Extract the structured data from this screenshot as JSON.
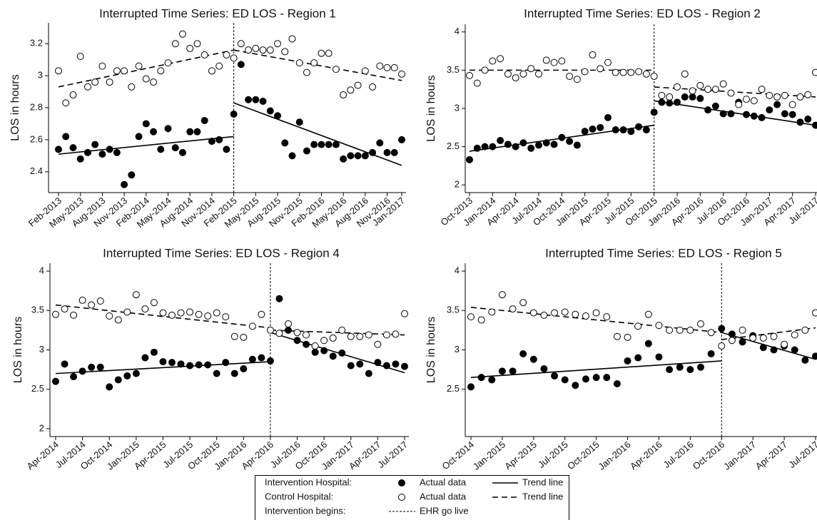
{
  "chart_data": [
    {
      "type": "scatter",
      "title": "Interrupted Time Series: ED LOS - Region 1",
      "y_label": "LOS in hours",
      "categories": [
        "Feb-2013",
        null,
        null,
        "May-2013",
        null,
        null,
        "Aug-2013",
        null,
        null,
        "Nov-2013",
        null,
        null,
        "Feb-2014",
        null,
        null,
        "May-2014",
        null,
        null,
        "Aug-2014",
        null,
        null,
        "Nov-2014",
        null,
        null,
        "Feb-2015",
        null,
        null,
        "May-2015",
        null,
        null,
        "Aug-2015",
        null,
        null,
        "Nov-2015",
        null,
        null,
        "Feb-2016",
        null,
        null,
        "May-2016",
        null,
        null,
        "Aug-2016",
        null,
        null,
        "Nov-2016",
        null,
        "Jan-2017"
      ],
      "intervention": "Feb-2015",
      "ylim": [
        2.27,
        3.33
      ],
      "yticks": [
        2.4,
        2.6,
        2.8,
        3,
        3.2
      ],
      "series": [
        {
          "marker": "filled",
          "color": "#000000",
          "values": [
            2.54,
            2.62,
            2.55,
            2.48,
            2.52,
            2.57,
            2.51,
            2.54,
            2.52,
            2.32,
            2.38,
            2.62,
            2.7,
            2.65,
            2.54,
            2.67,
            2.55,
            2.52,
            2.65,
            2.65,
            2.72,
            2.59,
            2.6,
            2.54,
            2.76,
            3.07,
            2.85,
            2.85,
            2.84,
            2.78,
            2.75,
            2.58,
            2.5,
            2.71,
            2.53,
            2.57,
            2.57,
            2.57,
            2.57,
            2.48,
            2.5,
            2.5,
            2.5,
            2.52,
            2.58,
            2.52,
            2.52,
            2.6
          ]
        },
        {
          "marker": "open",
          "color": "#000000",
          "values": [
            3.03,
            2.83,
            2.88,
            3.12,
            2.93,
            2.96,
            3.06,
            2.96,
            3.03,
            3.03,
            2.93,
            3.06,
            2.98,
            2.96,
            3.03,
            3.08,
            3.2,
            3.26,
            3.17,
            3.2,
            3.13,
            3.03,
            3.06,
            3.13,
            3.11,
            3.2,
            3.16,
            3.17,
            3.16,
            3.16,
            3.2,
            3.15,
            3.23,
            3.08,
            3.02,
            3.08,
            3.14,
            3.14,
            3.04,
            2.88,
            2.91,
            2.94,
            3.03,
            2.93,
            3.06,
            3.05,
            3.05,
            3.01
          ]
        }
      ],
      "trends": [
        {
          "dashed": false,
          "segments": [
            {
              "x": [
                "Feb-2013",
                "Feb-2015"
              ],
              "values": [
                2.51,
                2.62
              ]
            },
            {
              "x": [
                "Feb-2015",
                "Jan-2017"
              ],
              "values": [
                2.83,
                2.44
              ]
            }
          ]
        },
        {
          "dashed": true,
          "segments": [
            {
              "x": [
                "Feb-2013",
                "Feb-2015"
              ],
              "values": [
                2.93,
                3.16
              ]
            },
            {
              "x": [
                "Feb-2015",
                "Jan-2017"
              ],
              "values": [
                3.16,
                2.97
              ]
            }
          ]
        }
      ]
    },
    {
      "type": "scatter",
      "title": "Interrupted Time Series: ED LOS - Region 2",
      "y_label": "LOS in hours",
      "categories": [
        "Oct-2013",
        null,
        null,
        "Jan-2014",
        null,
        null,
        "Apr-2014",
        null,
        null,
        "Jul-2014",
        null,
        null,
        "Oct-2014",
        null,
        null,
        "Jan-2015",
        null,
        null,
        "Apr-2015",
        null,
        null,
        "Jul-2015",
        null,
        null,
        "Oct-2015",
        null,
        null,
        "Jan-2016",
        null,
        null,
        "Apr-2016",
        null,
        null,
        "Jul-2016",
        null,
        null,
        "Oct-2016",
        null,
        null,
        "Jan-2017",
        null,
        null,
        "Apr-2017",
        null,
        null,
        "Jul-2017"
      ],
      "intervention": "Oct-2015",
      "ylim": [
        1.9,
        4.1
      ],
      "yticks": [
        2,
        2.5,
        3,
        3.5,
        4
      ],
      "series": [
        {
          "marker": "filled",
          "color": "#000000",
          "values": [
            2.33,
            2.48,
            2.5,
            2.5,
            2.58,
            2.53,
            2.5,
            2.55,
            2.48,
            2.52,
            2.55,
            2.53,
            2.62,
            2.57,
            2.52,
            2.7,
            2.73,
            2.75,
            2.88,
            2.72,
            2.72,
            2.7,
            2.76,
            2.72,
            2.95,
            3.08,
            3.07,
            3.08,
            3.15,
            3.15,
            3.13,
            2.98,
            3.03,
            2.93,
            2.93,
            3.08,
            2.92,
            2.9,
            2.88,
            2.98,
            3.05,
            2.93,
            2.92,
            2.82,
            2.86,
            2.78
          ]
        },
        {
          "marker": "open",
          "color": "#000000",
          "values": [
            3.43,
            3.33,
            3.5,
            3.62,
            3.65,
            3.45,
            3.4,
            3.45,
            3.52,
            3.45,
            3.63,
            3.6,
            3.62,
            3.42,
            3.38,
            3.48,
            3.7,
            3.52,
            3.6,
            3.47,
            3.47,
            3.47,
            3.48,
            3.45,
            3.42,
            3.17,
            3.15,
            3.28,
            3.45,
            3.23,
            3.3,
            3.25,
            3.25,
            3.32,
            3.2,
            3.05,
            3.12,
            3.1,
            3.25,
            3.17,
            3.15,
            3.17,
            3.05,
            3.15,
            3.18,
            3.47
          ]
        }
      ],
      "trends": [
        {
          "dashed": false,
          "segments": [
            {
              "x": [
                "Oct-2013",
                "Oct-2015"
              ],
              "values": [
                2.44,
                2.78
              ]
            },
            {
              "x": [
                "Oct-2015",
                "Jul-2017"
              ],
              "values": [
                3.1,
                2.78
              ]
            }
          ]
        },
        {
          "dashed": true,
          "segments": [
            {
              "x": [
                "Oct-2013",
                "Oct-2015"
              ],
              "values": [
                3.5,
                3.5
              ]
            },
            {
              "x": [
                "Oct-2015",
                "Jul-2017"
              ],
              "values": [
                3.28,
                3.15
              ]
            }
          ]
        }
      ]
    },
    {
      "type": "scatter",
      "title": "Interrupted Time Series: ED LOS - Region 4",
      "y_label": "LOS in hours",
      "categories": [
        "Apr-2014",
        null,
        null,
        "Jul-2014",
        null,
        null,
        "Oct-2014",
        null,
        null,
        "Jan-2015",
        null,
        null,
        "Apr-2015",
        null,
        null,
        "Jul-2015",
        null,
        null,
        "Oct-2015",
        null,
        null,
        "Jan-2016",
        null,
        null,
        "Apr-2016",
        null,
        null,
        "Jul-2016",
        null,
        null,
        "Oct-2016",
        null,
        null,
        "Jan-2017",
        null,
        null,
        "Apr-2017",
        null,
        null,
        "Jul-2017"
      ],
      "intervention": "Apr-2016",
      "ylim": [
        1.9,
        4.1
      ],
      "yticks": [
        2,
        2.5,
        3,
        3.5,
        4
      ],
      "series": [
        {
          "marker": "filled",
          "color": "#000000",
          "values": [
            2.6,
            2.82,
            2.66,
            2.73,
            2.78,
            2.78,
            2.53,
            2.62,
            2.67,
            2.7,
            2.9,
            2.97,
            2.85,
            2.84,
            2.82,
            2.8,
            2.81,
            2.81,
            2.7,
            2.84,
            2.7,
            2.76,
            2.88,
            2.9,
            2.86,
            3.65,
            3.25,
            3.12,
            3.07,
            2.97,
            2.99,
            2.92,
            2.96,
            2.8,
            2.82,
            2.7,
            2.84,
            2.8,
            2.82,
            2.79
          ]
        },
        {
          "marker": "open",
          "color": "#000000",
          "values": [
            3.45,
            3.52,
            3.44,
            3.63,
            3.57,
            3.62,
            3.43,
            3.38,
            3.48,
            3.7,
            3.52,
            3.6,
            3.47,
            3.44,
            3.47,
            3.48,
            3.45,
            3.43,
            3.47,
            3.42,
            3.17,
            3.16,
            3.3,
            3.45,
            3.25,
            3.21,
            3.33,
            3.22,
            3.19,
            3.05,
            3.12,
            3.15,
            3.25,
            3.17,
            3.17,
            3.19,
            3.07,
            3.19,
            3.2,
            3.46
          ]
        }
      ],
      "trends": [
        {
          "dashed": false,
          "segments": [
            {
              "x": [
                "Apr-2014",
                "Apr-2016"
              ],
              "values": [
                2.7,
                2.85
              ]
            },
            {
              "x": [
                "Apr-2016",
                "Jul-2017"
              ],
              "values": [
                3.22,
                2.71
              ]
            }
          ]
        },
        {
          "dashed": true,
          "segments": [
            {
              "x": [
                "Apr-2014",
                "Apr-2016"
              ],
              "values": [
                3.57,
                3.28
              ]
            },
            {
              "x": [
                "Apr-2016",
                "Jul-2017"
              ],
              "values": [
                3.25,
                3.19
              ]
            }
          ]
        }
      ]
    },
    {
      "type": "scatter",
      "title": "Interrupted Time Series: ED LOS - Region 5",
      "y_label": "LOS in hours",
      "categories": [
        "Oct-2014",
        null,
        null,
        "Jan-2015",
        null,
        null,
        "Apr-2015",
        null,
        null,
        "Jul-2015",
        null,
        null,
        "Oct-2015",
        null,
        null,
        "Jan-2016",
        null,
        null,
        "Apr-2016",
        null,
        null,
        "Jul-2016",
        null,
        null,
        "Oct-2016",
        null,
        null,
        "Jan-2017",
        null,
        null,
        "Apr-2017",
        null,
        null,
        "Jul-2017"
      ],
      "intervention": "Oct-2016",
      "ylim": [
        1.9,
        4.1
      ],
      "yticks": [
        2.5,
        3,
        3.5,
        4
      ],
      "series": [
        {
          "marker": "filled",
          "color": "#000000",
          "values": [
            2.53,
            2.65,
            2.62,
            2.73,
            2.73,
            2.95,
            2.88,
            2.76,
            2.67,
            2.62,
            2.55,
            2.63,
            2.65,
            2.65,
            2.57,
            2.86,
            2.9,
            3.08,
            2.91,
            2.75,
            2.78,
            2.75,
            2.78,
            2.95,
            3.27,
            3.2,
            3.1,
            3.18,
            3.03,
            3.0,
            3.05,
            3.0,
            2.87,
            2.92
          ]
        },
        {
          "marker": "open",
          "color": "#000000",
          "values": [
            3.42,
            3.38,
            3.48,
            3.7,
            3.52,
            3.6,
            3.47,
            3.44,
            3.47,
            3.48,
            3.45,
            3.43,
            3.47,
            3.42,
            3.17,
            3.16,
            3.3,
            3.45,
            3.31,
            3.25,
            3.25,
            3.25,
            3.33,
            3.22,
            3.05,
            3.12,
            3.25,
            3.15,
            3.15,
            3.17,
            3.07,
            3.19,
            3.25,
            3.47
          ]
        }
      ],
      "trends": [
        {
          "dashed": false,
          "segments": [
            {
              "x": [
                "Oct-2014",
                "Oct-2016"
              ],
              "values": [
                2.65,
                2.86
              ]
            },
            {
              "x": [
                "Oct-2016",
                "Jul-2017"
              ],
              "values": [
                3.22,
                2.88
              ]
            }
          ]
        },
        {
          "dashed": true,
          "segments": [
            {
              "x": [
                "Oct-2014",
                "Oct-2016"
              ],
              "values": [
                3.54,
                3.22
              ]
            },
            {
              "x": [
                "Oct-2016",
                "Jul-2017"
              ],
              "values": [
                3.13,
                3.28
              ]
            }
          ]
        }
      ]
    }
  ],
  "legend": {
    "rows": [
      {
        "label": "Intervention Hospital:",
        "marker": "Actual data",
        "line": "Trend line"
      },
      {
        "label": "Control Hospital:",
        "marker": "Actual data",
        "line": "Trend line"
      },
      {
        "label": "Intervention begins:",
        "line": "EHR go live"
      }
    ]
  }
}
